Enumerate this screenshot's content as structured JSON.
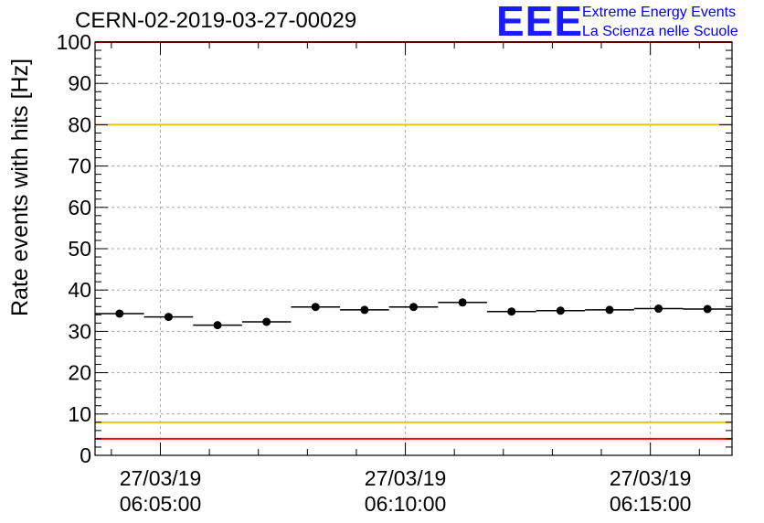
{
  "header": {
    "title": "CERN-02-2019-03-27-00029",
    "logo_text": "EEE",
    "logo_line1": "Extreme Energy Events",
    "logo_line2": "La Scienza nelle Scuole"
  },
  "colors": {
    "logo": "#1a1aff",
    "red_line": "#ff0000",
    "yellow_line": "#e6c800",
    "points": "#000000",
    "grid": "#aaaaaa"
  },
  "chart_data": {
    "type": "scatter",
    "title": "CERN-02-2019-03-27-00029",
    "xlabel": "",
    "ylabel": "Rate events with hits [Hz]",
    "ylim": [
      0,
      100
    ],
    "yticks": [
      0,
      10,
      20,
      30,
      40,
      50,
      60,
      70,
      80,
      90,
      100
    ],
    "xlim": [
      "06:03:40",
      "06:16:40"
    ],
    "xticks": [
      {
        "date": "27/03/19",
        "time": "06:05:00"
      },
      {
        "date": "27/03/19",
        "time": "06:10:00"
      },
      {
        "date": "27/03/19",
        "time": "06:15:00"
      }
    ],
    "grid": true,
    "bin_width_s": 60,
    "series": [
      {
        "x": [
          "06:04:10",
          "06:05:10",
          "06:06:10",
          "06:07:10",
          "06:08:10",
          "06:09:10",
          "06:10:10",
          "06:11:10",
          "06:12:10",
          "06:13:10",
          "06:14:10",
          "06:15:10",
          "06:16:10"
        ],
        "values": [
          34.3,
          33.5,
          31.5,
          32.3,
          35.9,
          35.2,
          35.9,
          37.0,
          34.8,
          35.0,
          35.2,
          35.5,
          35.4
        ]
      }
    ],
    "reference_lines": [
      {
        "y": 100,
        "color": "#ff0000"
      },
      {
        "y": 80,
        "color": "#e6c800"
      },
      {
        "y": 8,
        "color": "#e6c800"
      },
      {
        "y": 4,
        "color": "#ff0000"
      }
    ]
  }
}
